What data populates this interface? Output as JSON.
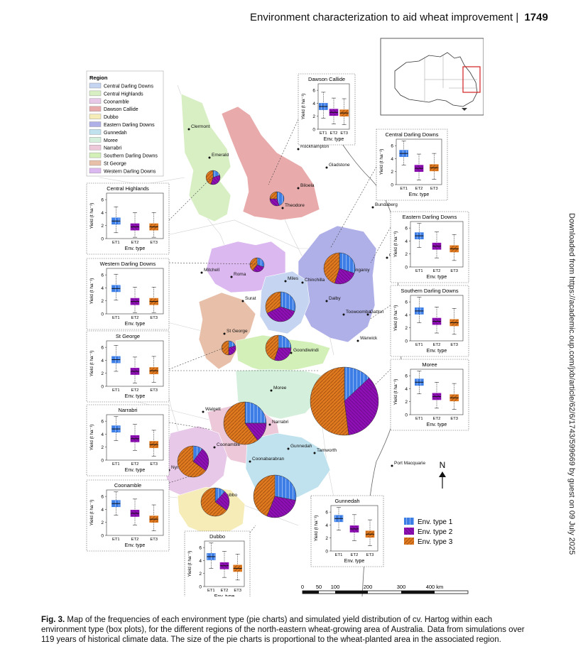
{
  "header": {
    "running_title": "Environment characterization to aid wheat improvement",
    "separator": "|",
    "page_number": "1749"
  },
  "side_note": "Downloaded from https://academic.oup.com/jxb/article/62/6/1743/599669 by guest on 09 July 2025",
  "legend": {
    "title": "Region",
    "items": [
      {
        "label": "Central Darling Downs",
        "color": "#c5d4f0"
      },
      {
        "label": "Central Highlands",
        "color": "#d8efc4"
      },
      {
        "label": "Coonamble",
        "color": "#e8c8e8"
      },
      {
        "label": "Dawson Callide",
        "color": "#e8aaaa"
      },
      {
        "label": "Dubbo",
        "color": "#f5ecb8"
      },
      {
        "label": "Eastern Darling Downs",
        "color": "#b0b0e8"
      },
      {
        "label": "Gunnedah",
        "color": "#bfe2ee"
      },
      {
        "label": "Moree",
        "color": "#d4f0dc"
      },
      {
        "label": "Narrabri",
        "color": "#ecc8d8"
      },
      {
        "label": "Southern Darling Downs",
        "color": "#d2f0b8"
      },
      {
        "label": "St George",
        "color": "#e8c0aa"
      },
      {
        "label": "Western Darling Downs",
        "color": "#dcb8f0"
      }
    ]
  },
  "towns": [
    "Clermont",
    "Emerald",
    "Rockhampton",
    "Gladstone",
    "Biloela",
    "Theodore",
    "Bundaberg",
    "Gympie",
    "Mitchell",
    "Roma",
    "Miles",
    "Chinchilla",
    "Kingaroy",
    "Dalby",
    "Toowoomba",
    "Gatton",
    "Surat",
    "Warwick",
    "St George",
    "Goondiwindi",
    "Moree",
    "Walgett",
    "Narrabri",
    "Coonamble",
    "Gunnedah",
    "Tamworth",
    "Coonabarabran",
    "Nyngan",
    "Dubbo",
    "Port Macquarie"
  ],
  "boxplot_labels": {
    "ylabel": "Yield (t ha⁻¹)",
    "xlabel": "Env. type",
    "categories": [
      "ET1",
      "ET2",
      "ET3"
    ],
    "yticks": [
      "0",
      "2",
      "4",
      "6"
    ]
  },
  "env_legend": [
    "Env. type 1",
    "Env. type 2",
    "Env. type 3"
  ],
  "env_colors": [
    "#3d7ee6",
    "#8e10b4",
    "#e07a20"
  ],
  "scale": {
    "ticks": [
      "0",
      "50",
      "100",
      "200",
      "300",
      "400 km"
    ]
  },
  "north": "N",
  "caption": {
    "label": "Fig. 3.",
    "text": " Map of the frequencies of each environment type (pie charts) and simulated yield distribution of cv. Hartog within each environment type (box plots), for the different regions of the north-eastern wheat-growing area of Australia. Data from simulations over 119 years of historical climate data. The size of the pie charts is proportional to the wheat-planted area in the associated region."
  },
  "chart_data": {
    "type": "boxplot",
    "categories": [
      "ET1",
      "ET2",
      "ET3"
    ],
    "ylim": [
      0,
      7
    ],
    "regions": [
      {
        "name": "Dawson Callide",
        "medians": [
          3.5,
          2.6,
          2.5
        ],
        "pie": [
          0.45,
          0.3,
          0.25
        ]
      },
      {
        "name": "Central Darling Downs",
        "medians": [
          4.8,
          2.5,
          2.6
        ],
        "pie": [
          0.3,
          0.38,
          0.32
        ]
      },
      {
        "name": "Central Highlands",
        "medians": [
          2.7,
          1.8,
          1.8
        ],
        "pie": [
          0.2,
          0.35,
          0.45
        ]
      },
      {
        "name": "Eastern Darling Downs",
        "medians": [
          4.8,
          3.2,
          2.8
        ],
        "pie": [
          0.3,
          0.25,
          0.45
        ]
      },
      {
        "name": "Western Darling Downs",
        "medians": [
          3.9,
          1.9,
          1.9
        ],
        "pie": [
          0.3,
          0.3,
          0.4
        ]
      },
      {
        "name": "Southern Darling Downs",
        "medians": [
          4.6,
          3.0,
          2.8
        ],
        "pie": [
          0.25,
          0.3,
          0.45
        ]
      },
      {
        "name": "St George",
        "medians": [
          4.1,
          2.3,
          2.4
        ],
        "pie": [
          0.2,
          0.3,
          0.5
        ]
      },
      {
        "name": "Moree",
        "medians": [
          5.0,
          2.8,
          2.6
        ],
        "pie": [
          0.13,
          0.35,
          0.52
        ]
      },
      {
        "name": "Narrabri",
        "medians": [
          4.8,
          3.3,
          2.4
        ],
        "pie": [
          0.25,
          0.15,
          0.6
        ]
      },
      {
        "name": "Gunnedah",
        "medians": [
          5.0,
          3.4,
          2.6
        ],
        "pie": [
          0.28,
          0.28,
          0.44
        ]
      },
      {
        "name": "Coonamble",
        "medians": [
          4.9,
          3.4,
          2.5
        ],
        "pie": [
          0.1,
          0.25,
          0.65
        ]
      },
      {
        "name": "Dubbo",
        "medians": [
          4.6,
          3.2,
          2.8
        ],
        "pie": [
          0.12,
          0.23,
          0.65
        ]
      }
    ]
  }
}
